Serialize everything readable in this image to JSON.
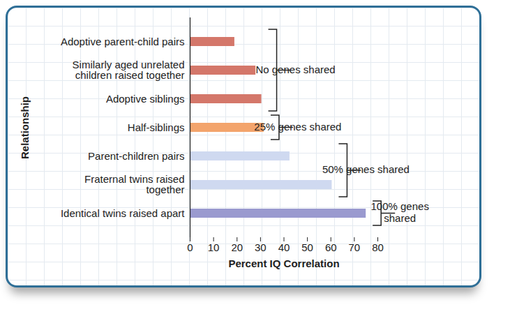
{
  "chart_data": {
    "type": "bar",
    "orientation": "horizontal",
    "categories": [
      "Adoptive parent-child pairs",
      "Similarly aged unrelated\nchildren raised together",
      "Adoptive siblings",
      "Half-siblings",
      "Parent-children pairs",
      "Fraternal twins raised\ntogether",
      "Identical twins raised apart"
    ],
    "values": [
      19,
      28,
      30.5,
      31.5,
      42.5,
      60.5,
      75
    ],
    "colors": [
      "#d4776a",
      "#d4776a",
      "#d4776a",
      "#f3a46c",
      "#cfd9f0",
      "#cfd9f0",
      "#9a9acf"
    ],
    "xlabel": "Percent IQ Correlation",
    "ylabel": "Relationship",
    "xlim": [
      0,
      80
    ],
    "xticks": [
      0,
      10,
      20,
      30,
      40,
      50,
      60,
      70,
      80
    ],
    "grid": false,
    "annotations": [
      {
        "text": "No genes shared",
        "categories": [
          "Adoptive parent-child pairs",
          "Similarly aged unrelated\nchildren raised together",
          "Adoptive siblings"
        ]
      },
      {
        "text": "25% genes shared",
        "categories": [
          "Half-siblings"
        ]
      },
      {
        "text": "50% genes shared",
        "categories": [
          "Parent-children pairs",
          "Fraternal twins raised\ntogether"
        ]
      },
      {
        "text": "100% genes\nshared",
        "categories": [
          "Identical twins raised apart"
        ]
      }
    ]
  }
}
